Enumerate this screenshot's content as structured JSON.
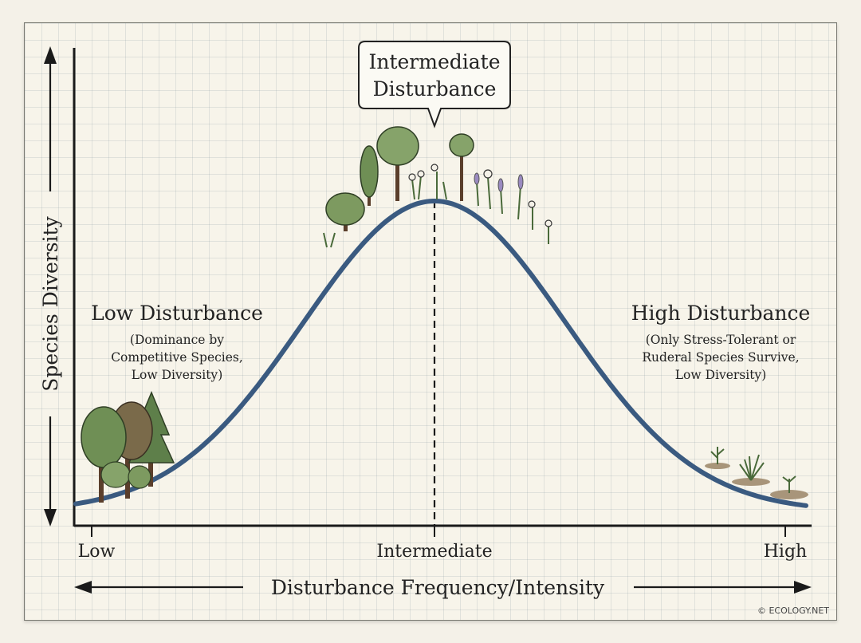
{
  "y_axis_label": "Species Diversity",
  "x_axis_label": "Disturbance Frequency/Intensity",
  "x_ticks": [
    "Low",
    "Intermediate",
    "High"
  ],
  "callout": {
    "line1": "Intermediate",
    "line2": "Disturbance"
  },
  "low": {
    "title": "Low Disturbance",
    "line1": "(Dominance by",
    "line2": "Competitive Species,",
    "line3": "Low Diversity)"
  },
  "high": {
    "title": "High Disturbance",
    "line1": "(Only Stress-Tolerant or",
    "line2": "Ruderal Species Survive,",
    "line3": "Low Diversity)"
  },
  "credit": "© ECOLOGY.NET",
  "colors": {
    "curve": "#3a5a80",
    "axis": "#1a1a1a",
    "grid": "#c9d0d2"
  }
}
